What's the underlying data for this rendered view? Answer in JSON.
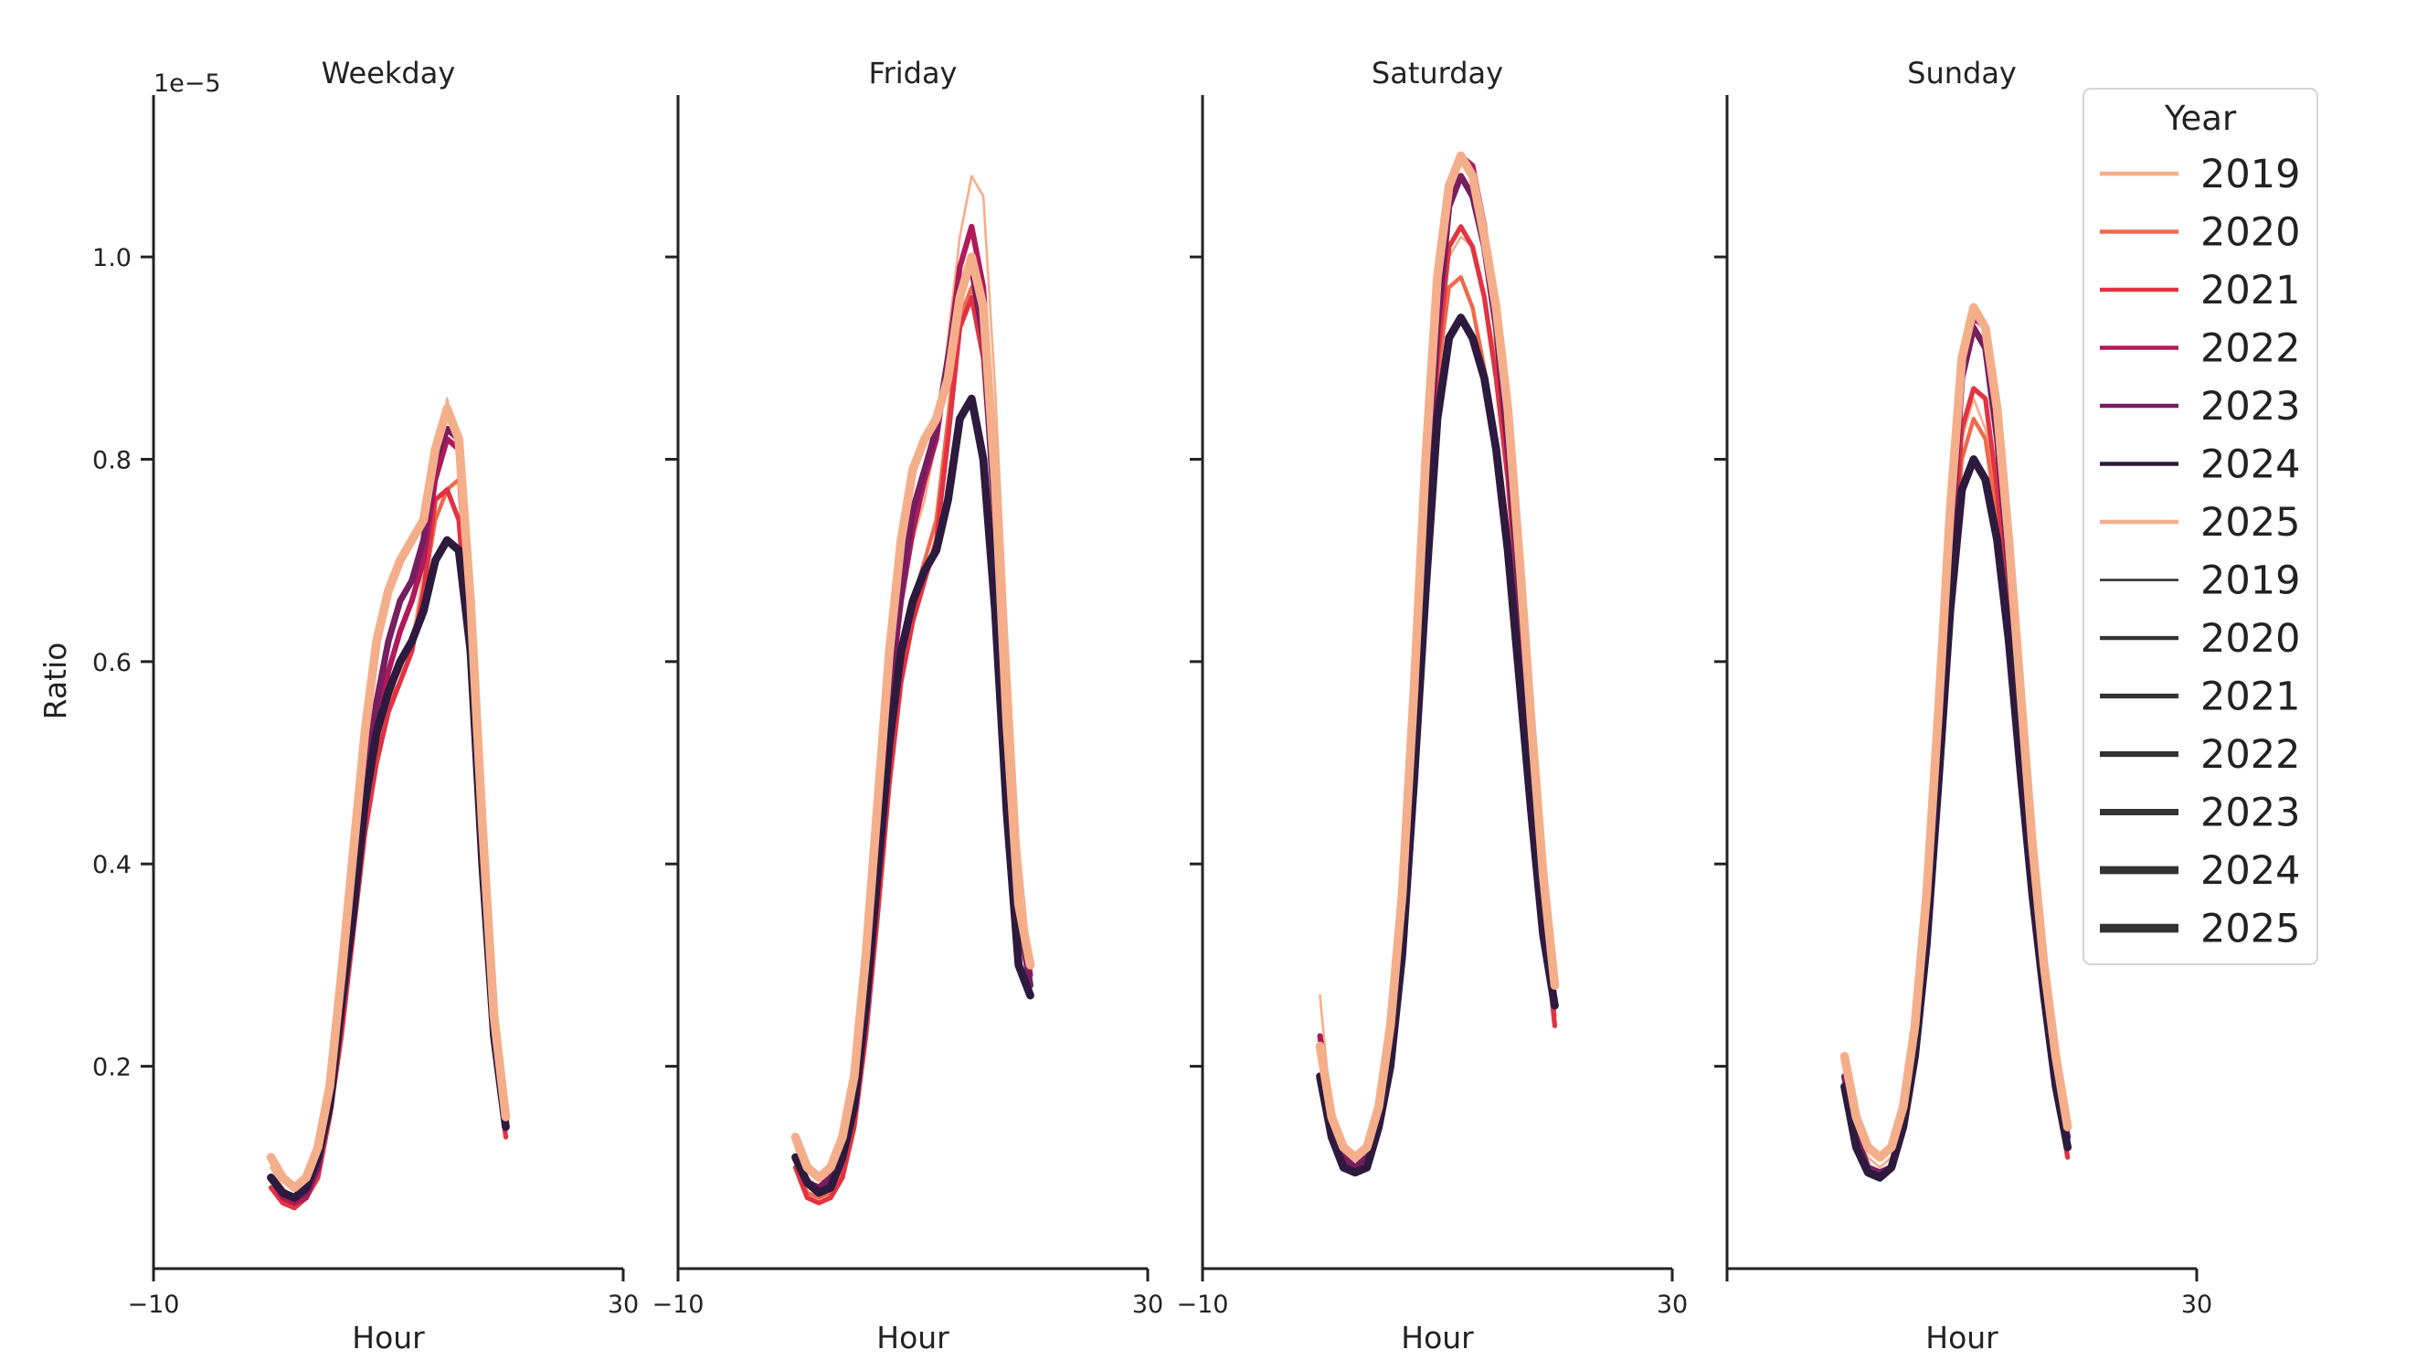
{
  "figure": {
    "y_axis_label": "Ratio",
    "y_exponent_label": "1e−5",
    "legend": {
      "title": "Year",
      "placement": "upper-right",
      "color_entries": [
        "2019",
        "2020",
        "2021",
        "2022",
        "2023",
        "2024",
        "2025"
      ],
      "width_entries": [
        "2019",
        "2020",
        "2021",
        "2022",
        "2023",
        "2024",
        "2025"
      ]
    }
  },
  "chart_data": [
    {
      "type": "line",
      "title": "Weekday",
      "xlabel": "Hour",
      "xlim": [
        -10,
        30
      ],
      "xticks": [
        -10,
        30
      ],
      "xtick_labels": [
        "−10",
        "30"
      ],
      "ylim": [
        0,
        1.16
      ],
      "yticks": [
        0.2,
        0.4,
        0.6,
        0.8,
        1.0
      ],
      "ytick_labels": [
        "0.2",
        "0.4",
        "0.6",
        "0.8",
        "1.0"
      ],
      "y_scale_multiplier": "1e-5",
      "x": [
        0,
        1,
        2,
        3,
        4,
        5,
        6,
        7,
        8,
        9,
        10,
        11,
        12,
        13,
        14,
        15,
        16,
        17,
        18,
        19,
        20,
        21,
        22,
        23
      ],
      "series": [
        {
          "name": "2019",
          "color": "#f5ae8a",
          "width": 1.5,
          "values": [
            0.1,
            0.08,
            0.07,
            0.08,
            0.11,
            0.17,
            0.26,
            0.36,
            0.46,
            0.53,
            0.57,
            0.59,
            0.62,
            0.69,
            0.77,
            0.86,
            0.8,
            0.63,
            0.43,
            0.25,
            0.14,
            null,
            null,
            null
          ]
        },
        {
          "name": "2020",
          "color": "#ef6a4b",
          "width": 2.5,
          "values": [
            0.08,
            0.07,
            0.06,
            0.07,
            0.1,
            0.16,
            0.24,
            0.34,
            0.44,
            0.51,
            0.56,
            0.58,
            0.61,
            0.67,
            0.74,
            0.77,
            0.78,
            0.62,
            0.41,
            0.24,
            0.13,
            null,
            null,
            null
          ]
        },
        {
          "name": "2021",
          "color": "#e13342",
          "width": 3.0,
          "values": [
            0.08,
            0.065,
            0.06,
            0.07,
            0.09,
            0.15,
            0.23,
            0.33,
            0.43,
            0.5,
            0.55,
            0.58,
            0.61,
            0.67,
            0.76,
            0.77,
            0.74,
            0.59,
            0.39,
            0.22,
            0.13,
            null,
            null,
            null
          ]
        },
        {
          "name": "2022",
          "color": "#b0195a",
          "width": 3.5,
          "values": [
            0.09,
            0.07,
            0.065,
            0.07,
            0.1,
            0.16,
            0.25,
            0.36,
            0.46,
            0.54,
            0.59,
            0.63,
            0.66,
            0.7,
            0.78,
            0.82,
            0.81,
            0.63,
            0.42,
            0.24,
            0.14,
            null,
            null,
            null
          ]
        },
        {
          "name": "2023",
          "color": "#761e5f",
          "width": 4.0,
          "values": [
            0.09,
            0.075,
            0.07,
            0.075,
            0.1,
            0.17,
            0.26,
            0.37,
            0.48,
            0.56,
            0.62,
            0.66,
            0.68,
            0.72,
            0.8,
            0.83,
            0.82,
            0.63,
            0.42,
            0.24,
            0.14,
            null,
            null,
            null
          ]
        },
        {
          "name": "2024",
          "color": "#2d1a3e",
          "width": 5.0,
          "values": [
            0.09,
            0.075,
            0.07,
            0.08,
            0.11,
            0.16,
            0.26,
            0.35,
            0.46,
            0.53,
            0.57,
            0.6,
            0.62,
            0.65,
            0.7,
            0.72,
            0.71,
            0.61,
            0.4,
            0.23,
            0.14,
            null,
            null,
            null
          ]
        },
        {
          "name": "2025",
          "color": "#f5ae8a",
          "width": 5.5,
          "values": [
            0.11,
            0.09,
            0.08,
            0.09,
            0.12,
            0.18,
            0.29,
            0.41,
            0.53,
            0.62,
            0.67,
            0.7,
            0.72,
            0.74,
            0.81,
            0.85,
            0.82,
            0.66,
            0.44,
            0.25,
            0.15,
            null,
            null,
            null
          ]
        }
      ]
    },
    {
      "type": "line",
      "title": "Friday",
      "xlabel": "Hour",
      "xlim": [
        -10,
        30
      ],
      "xticks": [
        -10,
        30
      ],
      "xtick_labels": [
        "−10",
        "30"
      ],
      "ylim": [
        0,
        1.16
      ],
      "yticks": [
        0.2,
        0.4,
        0.6,
        0.8,
        1.0
      ],
      "ytick_labels": [],
      "y_scale_multiplier": "1e-5",
      "x": [
        0,
        1,
        2,
        3,
        4,
        5,
        6,
        7,
        8,
        9,
        10,
        11,
        12,
        13,
        14,
        15,
        16,
        17,
        18,
        19,
        20,
        21,
        22,
        23
      ],
      "series": [
        {
          "name": "2019",
          "color": "#f5ae8a",
          "width": 1.5,
          "values": [
            0.12,
            0.09,
            0.08,
            0.085,
            0.11,
            0.17,
            0.28,
            0.42,
            0.56,
            0.66,
            0.72,
            0.76,
            0.82,
            0.92,
            1.02,
            1.08,
            1.06,
            0.87,
            0.63,
            0.42,
            0.3,
            null,
            null,
            null
          ]
        },
        {
          "name": "2020",
          "color": "#ef6a4b",
          "width": 2.5,
          "values": [
            0.1,
            0.075,
            0.07,
            0.075,
            0.1,
            0.15,
            0.24,
            0.37,
            0.5,
            0.6,
            0.66,
            0.7,
            0.74,
            0.84,
            0.94,
            0.97,
            0.93,
            0.78,
            0.54,
            0.37,
            0.3,
            null,
            null,
            null
          ]
        },
        {
          "name": "2021",
          "color": "#e13342",
          "width": 3.0,
          "values": [
            0.1,
            0.07,
            0.065,
            0.07,
            0.09,
            0.14,
            0.23,
            0.35,
            0.48,
            0.58,
            0.64,
            0.68,
            0.72,
            0.82,
            0.93,
            0.96,
            0.9,
            0.74,
            0.52,
            0.35,
            0.29,
            null,
            null,
            null
          ]
        },
        {
          "name": "2022",
          "color": "#b0195a",
          "width": 3.5,
          "values": [
            0.11,
            0.085,
            0.08,
            0.085,
            0.11,
            0.17,
            0.28,
            0.42,
            0.56,
            0.66,
            0.73,
            0.78,
            0.82,
            0.9,
            0.99,
            1.03,
            0.97,
            0.8,
            0.56,
            0.37,
            0.29,
            null,
            null,
            null
          ]
        },
        {
          "name": "2023",
          "color": "#761e5f",
          "width": 4.0,
          "values": [
            0.11,
            0.085,
            0.08,
            0.09,
            0.12,
            0.18,
            0.29,
            0.43,
            0.57,
            0.67,
            0.75,
            0.79,
            0.83,
            0.9,
            0.97,
            0.99,
            0.92,
            0.74,
            0.52,
            0.35,
            0.28,
            null,
            null,
            null
          ]
        },
        {
          "name": "2024",
          "color": "#2d1a3e",
          "width": 5.0,
          "values": [
            0.11,
            0.085,
            0.075,
            0.08,
            0.11,
            0.16,
            0.26,
            0.39,
            0.52,
            0.61,
            0.66,
            0.69,
            0.71,
            0.76,
            0.84,
            0.86,
            0.8,
            0.65,
            0.45,
            0.3,
            0.27,
            null,
            null,
            null
          ]
        },
        {
          "name": "2025",
          "color": "#f5ae8a",
          "width": 5.5,
          "values": [
            0.13,
            0.1,
            0.09,
            0.1,
            0.13,
            0.19,
            0.31,
            0.46,
            0.61,
            0.72,
            0.79,
            0.82,
            0.84,
            0.88,
            0.96,
            1.0,
            0.95,
            0.78,
            0.54,
            0.36,
            0.3,
            null,
            null,
            null
          ]
        }
      ]
    },
    {
      "type": "line",
      "title": "Saturday",
      "xlabel": "Hour",
      "xlim": [
        -10,
        30
      ],
      "xticks": [
        -10,
        30
      ],
      "xtick_labels": [
        "−10",
        "30"
      ],
      "ylim": [
        0,
        1.16
      ],
      "yticks": [
        0.2,
        0.4,
        0.6,
        0.8,
        1.0
      ],
      "ytick_labels": [],
      "y_scale_multiplier": "1e-5",
      "x": [
        0,
        1,
        2,
        3,
        4,
        5,
        6,
        7,
        8,
        9,
        10,
        11,
        12,
        13,
        14,
        15,
        16,
        17,
        18,
        19,
        20,
        21,
        22,
        23
      ],
      "series": [
        {
          "name": "2019",
          "color": "#f5ae8a",
          "width": 1.5,
          "values": [
            0.27,
            0.15,
            0.12,
            0.11,
            0.12,
            0.15,
            0.22,
            0.33,
            0.5,
            0.72,
            0.91,
            1.0,
            1.02,
            1.01,
            0.96,
            0.9,
            0.8,
            0.66,
            0.51,
            0.37,
            0.26,
            null,
            null,
            null
          ]
        },
        {
          "name": "2020",
          "color": "#ef6a4b",
          "width": 2.5,
          "values": [
            0.22,
            0.14,
            0.11,
            0.1,
            0.11,
            0.14,
            0.21,
            0.33,
            0.5,
            0.71,
            0.88,
            0.97,
            0.98,
            0.95,
            0.89,
            0.82,
            0.73,
            0.61,
            0.47,
            0.34,
            0.25,
            null,
            null,
            null
          ]
        },
        {
          "name": "2021",
          "color": "#e13342",
          "width": 3.0,
          "values": [
            0.23,
            0.14,
            0.11,
            0.1,
            0.11,
            0.14,
            0.21,
            0.33,
            0.5,
            0.71,
            0.9,
            1.01,
            1.03,
            1.01,
            0.96,
            0.88,
            0.78,
            0.64,
            0.49,
            0.35,
            0.24,
            null,
            null,
            null
          ]
        },
        {
          "name": "2022",
          "color": "#b0195a",
          "width": 3.5,
          "values": [
            0.23,
            0.15,
            0.11,
            0.1,
            0.11,
            0.15,
            0.22,
            0.34,
            0.52,
            0.74,
            0.94,
            1.06,
            1.1,
            1.09,
            1.03,
            0.94,
            0.82,
            0.67,
            0.51,
            0.37,
            0.26,
            null,
            null,
            null
          ]
        },
        {
          "name": "2023",
          "color": "#761e5f",
          "width": 4.0,
          "values": [
            0.22,
            0.14,
            0.11,
            0.1,
            0.11,
            0.14,
            0.22,
            0.34,
            0.52,
            0.74,
            0.93,
            1.05,
            1.08,
            1.06,
            1.01,
            0.93,
            0.81,
            0.66,
            0.5,
            0.36,
            0.26,
            null,
            null,
            null
          ]
        },
        {
          "name": "2024",
          "color": "#2d1a3e",
          "width": 5.0,
          "values": [
            0.19,
            0.13,
            0.1,
            0.095,
            0.1,
            0.14,
            0.2,
            0.31,
            0.48,
            0.67,
            0.84,
            0.92,
            0.94,
            0.92,
            0.88,
            0.81,
            0.71,
            0.58,
            0.45,
            0.33,
            0.26,
            null,
            null,
            null
          ]
        },
        {
          "name": "2025",
          "color": "#f5ae8a",
          "width": 5.5,
          "values": [
            0.22,
            0.15,
            0.12,
            0.11,
            0.12,
            0.16,
            0.24,
            0.37,
            0.57,
            0.8,
            0.98,
            1.07,
            1.1,
            1.08,
            1.02,
            0.95,
            0.85,
            0.7,
            0.54,
            0.39,
            0.28,
            null,
            null,
            null
          ]
        }
      ]
    },
    {
      "type": "line",
      "title": "Sunday",
      "xlabel": "Hour",
      "xlim": [
        -10,
        30
      ],
      "xticks": [
        -10,
        30
      ],
      "xtick_labels": [
        "",
        "30"
      ],
      "ylim": [
        0,
        1.16
      ],
      "yticks": [
        0.2,
        0.4,
        0.6,
        0.8,
        1.0
      ],
      "ytick_labels": [],
      "y_scale_multiplier": "1e-5",
      "x": [
        0,
        1,
        2,
        3,
        4,
        5,
        6,
        7,
        8,
        9,
        10,
        11,
        12,
        13,
        14,
        15,
        16,
        17,
        18,
        19,
        20,
        21,
        22,
        23
      ],
      "series": [
        {
          "name": "2019",
          "color": "#f5ae8a",
          "width": 1.5,
          "values": [
            0.2,
            0.14,
            0.11,
            0.1,
            0.11,
            0.14,
            0.21,
            0.33,
            0.49,
            0.67,
            0.82,
            0.86,
            0.83,
            0.75,
            0.64,
            0.51,
            0.38,
            0.28,
            0.2,
            0.14,
            null,
            null,
            null,
            null
          ]
        },
        {
          "name": "2020",
          "color": "#ef6a4b",
          "width": 2.5,
          "values": [
            0.19,
            0.13,
            0.1,
            0.095,
            0.1,
            0.14,
            0.21,
            0.33,
            0.49,
            0.66,
            0.8,
            0.84,
            0.82,
            0.74,
            0.63,
            0.5,
            0.37,
            0.27,
            0.19,
            0.13,
            null,
            null,
            null,
            null
          ]
        },
        {
          "name": "2021",
          "color": "#e13342",
          "width": 3.0,
          "values": [
            0.19,
            0.13,
            0.1,
            0.095,
            0.1,
            0.14,
            0.21,
            0.33,
            0.49,
            0.67,
            0.83,
            0.87,
            0.86,
            0.77,
            0.65,
            0.51,
            0.38,
            0.27,
            0.18,
            0.11,
            null,
            null,
            null,
            null
          ]
        },
        {
          "name": "2022",
          "color": "#b0195a",
          "width": 3.5,
          "values": [
            0.19,
            0.13,
            0.1,
            0.095,
            0.1,
            0.15,
            0.22,
            0.34,
            0.51,
            0.71,
            0.88,
            0.94,
            0.93,
            0.85,
            0.71,
            0.55,
            0.4,
            0.28,
            0.19,
            0.13,
            null,
            null,
            null,
            null
          ]
        },
        {
          "name": "2023",
          "color": "#761e5f",
          "width": 4.0,
          "values": [
            0.19,
            0.13,
            0.1,
            0.095,
            0.1,
            0.15,
            0.22,
            0.34,
            0.51,
            0.71,
            0.88,
            0.93,
            0.91,
            0.82,
            0.69,
            0.54,
            0.4,
            0.28,
            0.19,
            0.13,
            null,
            null,
            null,
            null
          ]
        },
        {
          "name": "2024",
          "color": "#2d1a3e",
          "width": 5.0,
          "values": [
            0.18,
            0.12,
            0.095,
            0.09,
            0.1,
            0.14,
            0.21,
            0.32,
            0.48,
            0.65,
            0.77,
            0.8,
            0.78,
            0.72,
            0.62,
            0.49,
            0.37,
            0.27,
            0.18,
            0.12,
            null,
            null,
            null,
            null
          ]
        },
        {
          "name": "2025",
          "color": "#f5ae8a",
          "width": 5.5,
          "values": [
            0.21,
            0.15,
            0.12,
            0.11,
            0.12,
            0.16,
            0.24,
            0.37,
            0.55,
            0.75,
            0.9,
            0.95,
            0.93,
            0.85,
            0.72,
            0.57,
            0.42,
            0.3,
            0.21,
            0.14,
            null,
            null,
            null,
            null
          ]
        }
      ]
    }
  ]
}
